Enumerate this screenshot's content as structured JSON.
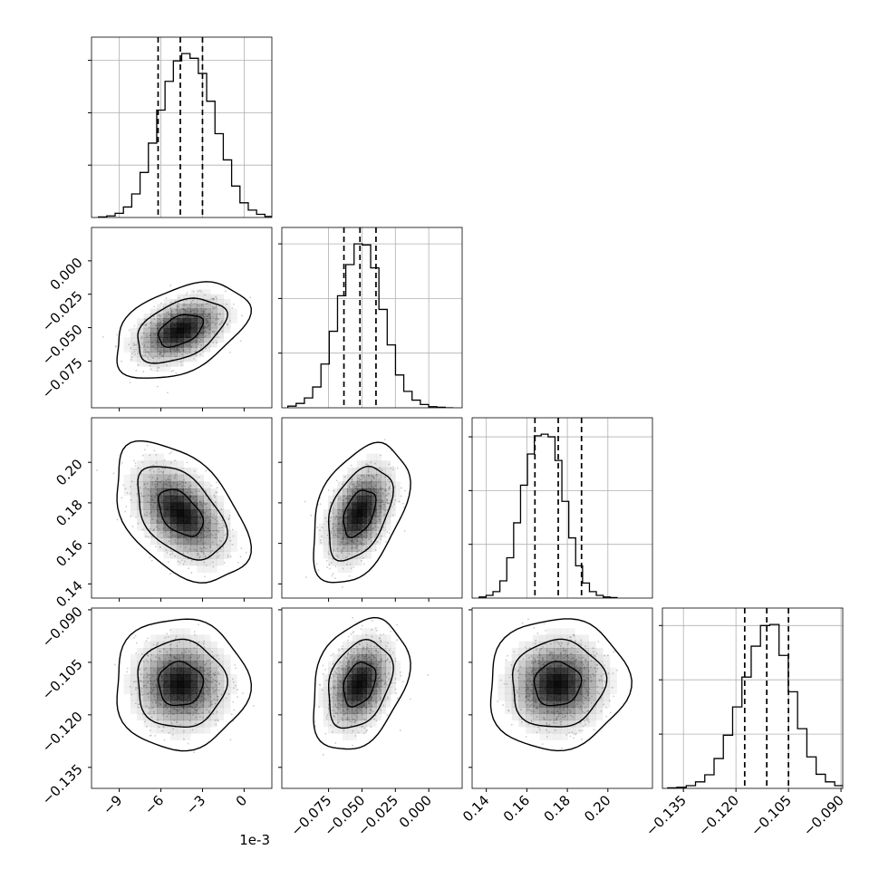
{
  "chart_data": {
    "type": "corner",
    "x_offset_text": "1e-3",
    "parameters": [
      {
        "range": [
          -11.0,
          2.0
        ],
        "ticks": [
          -9,
          -6,
          -3,
          0
        ],
        "tick_labels": [
          "−9",
          "−6",
          "−3",
          "0"
        ],
        "mean": -4.6,
        "quantiles": [
          -6.2,
          -4.6,
          -3.0
        ]
      },
      {
        "range": [
          -0.11,
          0.025
        ],
        "ticks": [
          -0.075,
          -0.05,
          -0.025,
          0.0
        ],
        "tick_labels": [
          "−0.075",
          "−0.050",
          "−0.025",
          "0.000"
        ],
        "mean": -0.052,
        "quantiles": [
          -0.0635,
          -0.0515,
          -0.0395
        ]
      },
      {
        "range": [
          0.133,
          0.222
        ],
        "ticks": [
          0.14,
          0.16,
          0.18,
          0.2
        ],
        "tick_labels": [
          "0.14",
          "0.16",
          "0.18",
          "0.20"
        ],
        "mean": 0.175,
        "quantiles": [
          0.164,
          0.1755,
          0.187
        ]
      },
      {
        "range": [
          -0.141,
          -0.0895
        ],
        "ticks": [
          -0.135,
          -0.12,
          -0.105,
          -0.09
        ],
        "tick_labels": [
          "−0.135",
          "−0.120",
          "−0.105",
          "−0.090"
        ],
        "mean": -0.1112,
        "quantiles": [
          -0.1175,
          -0.1112,
          -0.105
        ]
      }
    ],
    "histograms": [
      {
        "param": 0,
        "edges_from": -10.5,
        "bin_width": 0.6,
        "counts": [
          1,
          3,
          8,
          20,
          45,
          86,
          142,
          205,
          260,
          299,
          313,
          304,
          275,
          222,
          160,
          110,
          60,
          28,
          14,
          6,
          2,
          1
        ]
      },
      {
        "param": 1,
        "edges_from": -0.1055,
        "bin_width": 0.0062,
        "counts": [
          3,
          8,
          18,
          38,
          80,
          140,
          205,
          262,
          300,
          298,
          256,
          180,
          115,
          60,
          30,
          14,
          6,
          2,
          1,
          0
        ]
      },
      {
        "param": 2,
        "edges_from": 0.1365,
        "bin_width": 0.0034,
        "counts": [
          2,
          5,
          12,
          32,
          75,
          140,
          210,
          268,
          302,
          305,
          300,
          256,
          180,
          112,
          60,
          28,
          12,
          5,
          2,
          1
        ]
      },
      {
        "param": 3,
        "edges_from": -0.1395,
        "bin_width": 0.00265,
        "counts": [
          1,
          2,
          5,
          12,
          25,
          55,
          98,
          150,
          205,
          262,
          300,
          302,
          245,
          178,
          110,
          58,
          26,
          12,
          5,
          2
        ]
      }
    ],
    "correlations": {
      "0-1": 0.42,
      "0-2": -0.45,
      "0-3": 0.0,
      "1-2": 0.42,
      "1-3": 0.3,
      "2-3": 0.05
    },
    "contour_levels": [
      "39%",
      "86%",
      "99%"
    ],
    "colors": {
      "hist_line": "#000000",
      "grid": "#b0b0b0",
      "points": "#8c8c8c",
      "density": "#000000"
    },
    "grid": true
  }
}
